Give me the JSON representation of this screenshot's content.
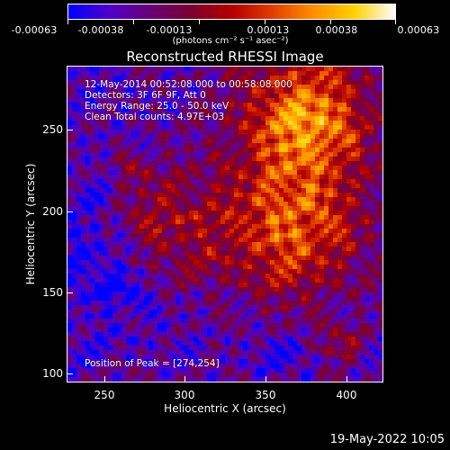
{
  "colorbar": {
    "tick_labels": [
      "-0.00063",
      "-0.00038",
      "-0.00013",
      "0.00013",
      "0.00038",
      "0.00063"
    ],
    "units": "(photons cm⁻² s⁻¹ asec⁻²)",
    "colormap": [
      "#0000ff",
      "#5000c8",
      "#6a0078",
      "#7a0030",
      "#b40000",
      "#e04000",
      "#ff9000",
      "#ffd000",
      "#ffffff"
    ]
  },
  "plot": {
    "title": "Reconstructed RHESSI Image",
    "info_lines": [
      "12-May-2014 00:52:08.000 to 00:58:08.000",
      "Detectors: 3F 6F 9F, Att 0",
      "Energy Range: 25.0 - 50.0 keV",
      "Clean     Total counts: 4.97E+03"
    ],
    "peak_label": "Position of Peak = [274,254]"
  },
  "x_axis": {
    "label": "Heliocentric X (arcsec)",
    "ticks": [
      "250",
      "300",
      "350",
      "400"
    ],
    "range": [
      228,
      424
    ]
  },
  "y_axis": {
    "label": "Heliocentric Y (arcsec)",
    "ticks": [
      "100",
      "150",
      "200",
      "250"
    ],
    "range": [
      96,
      292
    ]
  },
  "footer": {
    "date": "19-May-2022 10:05"
  }
}
